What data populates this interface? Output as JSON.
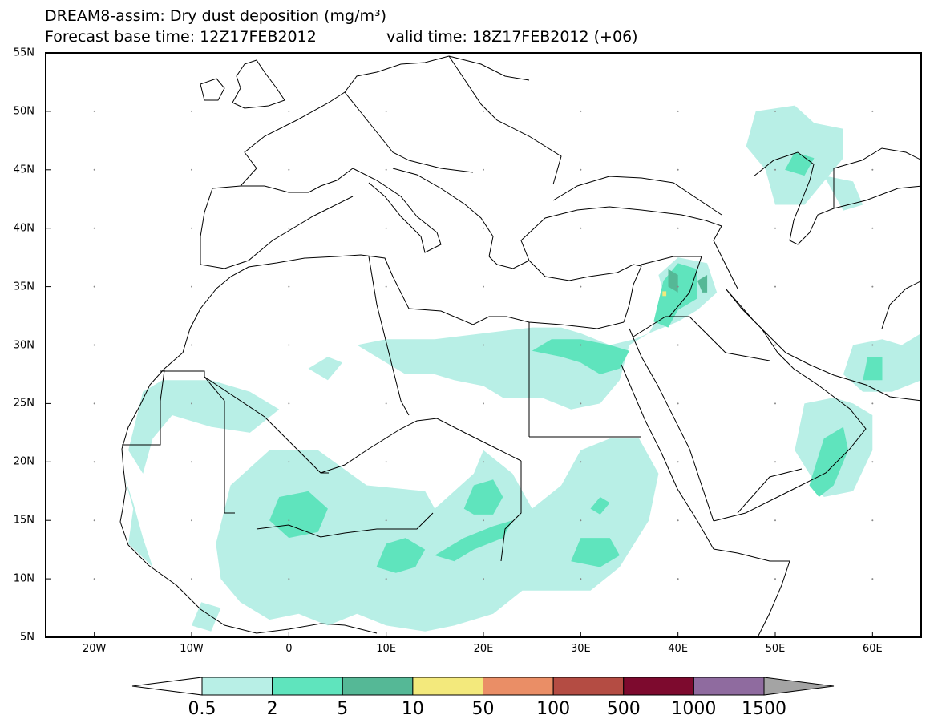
{
  "title": {
    "line1": "DREAM8-assim: Dry dust deposition (mg/m³)",
    "line2_left": "Forecast base time: 12Z17FEB2012",
    "line2_right": "valid time: 18Z17FEB2012 (+06)"
  },
  "map": {
    "lon_range": [
      -25,
      65
    ],
    "lat_range": [
      5,
      55
    ],
    "lat_ticks": [
      {
        "value": 55,
        "label": "55N"
      },
      {
        "value": 50,
        "label": "50N"
      },
      {
        "value": 45,
        "label": "45N"
      },
      {
        "value": 40,
        "label": "40N"
      },
      {
        "value": 35,
        "label": "35N"
      },
      {
        "value": 30,
        "label": "30N"
      },
      {
        "value": 25,
        "label": "25N"
      },
      {
        "value": 20,
        "label": "20N"
      },
      {
        "value": 15,
        "label": "15N"
      },
      {
        "value": 10,
        "label": "10N"
      },
      {
        "value": 5,
        "label": "5N"
      }
    ],
    "lon_ticks": [
      {
        "value": -20,
        "label": "20W"
      },
      {
        "value": -10,
        "label": "10W"
      },
      {
        "value": 0,
        "label": "0"
      },
      {
        "value": 10,
        "label": "10E"
      },
      {
        "value": 20,
        "label": "20E"
      },
      {
        "value": 30,
        "label": "30E"
      },
      {
        "value": 40,
        "label": "40E"
      },
      {
        "value": 50,
        "label": "50E"
      },
      {
        "value": 60,
        "label": "60E"
      }
    ],
    "grid": "dotted"
  },
  "colorbar": {
    "labels": [
      "0.5",
      "2",
      "5",
      "10",
      "50",
      "100",
      "500",
      "1000",
      "1500"
    ],
    "colors": [
      "#ffffff",
      "#b8efe6",
      "#5fe4bd",
      "#55b896",
      "#f3e97c",
      "#ea8e66",
      "#b44c43",
      "#7d0a2e",
      "#8f6b9f",
      "#a4a4a4"
    ]
  },
  "chart_data": {
    "type": "heatmap",
    "title": "DREAM8-assim: Dry dust deposition (mg/m³)",
    "subtitle": "Forecast base time: 12Z17FEB2012     valid time: 18Z17FEB2012 (+06)",
    "xlim": [
      -25,
      65
    ],
    "ylim": [
      5,
      55
    ],
    "levels": [
      0.5,
      2,
      5,
      10,
      50,
      100,
      500,
      1000,
      1500
    ],
    "regions": [
      {
        "level": 0.5,
        "poly": [
          [
            -16.5,
            21
          ],
          [
            -15,
            26
          ],
          [
            -13,
            27
          ],
          [
            -8,
            27
          ],
          [
            -4,
            26
          ],
          [
            -1,
            24.5
          ],
          [
            -4,
            22.5
          ],
          [
            -8,
            23
          ],
          [
            -12,
            24
          ],
          [
            -14,
            22
          ],
          [
            -15,
            19
          ]
        ]
      },
      {
        "level": 0.5,
        "poly": [
          [
            -17,
            19
          ],
          [
            -16,
            16
          ],
          [
            -16.5,
            13
          ],
          [
            -14,
            11
          ],
          [
            -15,
            13.5
          ],
          [
            -16,
            16.5
          ]
        ]
      },
      {
        "level": 0.5,
        "poly": [
          [
            -7.5,
            13
          ],
          [
            -6,
            18
          ],
          [
            -2,
            21
          ],
          [
            3,
            21
          ],
          [
            8,
            18
          ],
          [
            14,
            17.5
          ],
          [
            15,
            16
          ],
          [
            19,
            19
          ],
          [
            20,
            21
          ],
          [
            23,
            19
          ],
          [
            25,
            16
          ],
          [
            28,
            18
          ],
          [
            30,
            21
          ],
          [
            33,
            22
          ],
          [
            36,
            22
          ],
          [
            38,
            19
          ],
          [
            37,
            15
          ],
          [
            34,
            11
          ],
          [
            31,
            9
          ],
          [
            27,
            9
          ],
          [
            24,
            9
          ],
          [
            21,
            7
          ],
          [
            17,
            6
          ],
          [
            14,
            5.5
          ],
          [
            10,
            6
          ],
          [
            7,
            7
          ],
          [
            4,
            6
          ],
          [
            1,
            7
          ],
          [
            -2,
            6.5
          ],
          [
            -5,
            8
          ],
          [
            -7,
            10
          ]
        ]
      },
      {
        "level": 0.5,
        "poly": [
          [
            -10,
            6
          ],
          [
            -9,
            8
          ],
          [
            -7,
            7.5
          ],
          [
            -8,
            5.5
          ]
        ]
      },
      {
        "level": 0.5,
        "poly": [
          [
            7,
            30
          ],
          [
            9,
            29
          ],
          [
            12,
            27.5
          ],
          [
            15,
            27.5
          ],
          [
            17,
            27
          ],
          [
            20,
            26.5
          ],
          [
            22,
            25.5
          ],
          [
            26,
            25.5
          ],
          [
            29,
            24.5
          ],
          [
            32,
            25
          ],
          [
            34,
            27
          ],
          [
            35,
            30
          ],
          [
            37,
            31
          ],
          [
            38,
            32.5
          ],
          [
            39,
            33
          ],
          [
            38,
            36
          ],
          [
            40,
            37.5
          ],
          [
            43,
            37
          ],
          [
            44,
            34.5
          ],
          [
            42,
            33
          ],
          [
            40,
            32
          ],
          [
            37,
            31
          ],
          [
            35.5,
            30.5
          ],
          [
            33,
            30
          ],
          [
            30,
            31
          ],
          [
            28,
            31.5
          ],
          [
            25,
            31.5
          ],
          [
            20,
            31
          ],
          [
            15,
            30.5
          ],
          [
            10,
            30.5
          ]
        ]
      },
      {
        "level": 0.5,
        "poly": [
          [
            2,
            28
          ],
          [
            4,
            27
          ],
          [
            5.5,
            28.5
          ],
          [
            4,
            29
          ]
        ]
      },
      {
        "level": 0.5,
        "poly": [
          [
            53,
            25
          ],
          [
            52,
            21
          ],
          [
            55,
            17
          ],
          [
            58,
            17.5
          ],
          [
            60,
            21
          ],
          [
            60,
            24
          ],
          [
            58,
            25
          ],
          [
            56,
            25.5
          ]
        ]
      },
      {
        "level": 0.5,
        "poly": [
          [
            57,
            27.5
          ],
          [
            58,
            30
          ],
          [
            61,
            30.5
          ],
          [
            63,
            30
          ],
          [
            64,
            30.5
          ],
          [
            65,
            31
          ],
          [
            65,
            27
          ],
          [
            62,
            26
          ],
          [
            59,
            26
          ]
        ]
      },
      {
        "level": 0.5,
        "poly": [
          [
            47,
            47
          ],
          [
            48,
            50
          ],
          [
            52,
            50.5
          ],
          [
            54,
            49
          ],
          [
            57,
            48.5
          ],
          [
            57,
            46
          ],
          [
            55,
            44
          ],
          [
            53,
            42
          ],
          [
            50,
            42
          ],
          [
            49,
            45
          ]
        ]
      },
      {
        "level": 0.5,
        "poly": [
          [
            55,
            44.5
          ],
          [
            58,
            44
          ],
          [
            59,
            42
          ],
          [
            57,
            41.5
          ]
        ]
      },
      {
        "level": 2,
        "poly": [
          [
            -2,
            15
          ],
          [
            -1,
            17
          ],
          [
            2,
            17.5
          ],
          [
            4,
            16
          ],
          [
            3,
            14
          ],
          [
            0,
            13.5
          ]
        ]
      },
      {
        "level": 2,
        "poly": [
          [
            9,
            11
          ],
          [
            10,
            13
          ],
          [
            12,
            13.5
          ],
          [
            14,
            12.5
          ],
          [
            13,
            11
          ],
          [
            11,
            10.5
          ]
        ]
      },
      {
        "level": 2,
        "poly": [
          [
            15,
            12
          ],
          [
            18,
            13.5
          ],
          [
            21,
            14.5
          ],
          [
            23,
            15
          ],
          [
            22,
            13.5
          ],
          [
            19,
            12.5
          ],
          [
            17,
            11.5
          ]
        ]
      },
      {
        "level": 2,
        "poly": [
          [
            18,
            16
          ],
          [
            19,
            18
          ],
          [
            21,
            18.5
          ],
          [
            22,
            17
          ],
          [
            21,
            15.5
          ],
          [
            19,
            15.5
          ]
        ]
      },
      {
        "level": 2,
        "poly": [
          [
            29,
            11.5
          ],
          [
            30,
            13.5
          ],
          [
            33,
            13.5
          ],
          [
            34,
            12
          ],
          [
            32,
            11
          ]
        ]
      },
      {
        "level": 2,
        "poly": [
          [
            31,
            16
          ],
          [
            32,
            17
          ],
          [
            33,
            16.5
          ],
          [
            32,
            15.5
          ]
        ]
      },
      {
        "level": 2,
        "poly": [
          [
            25,
            29.5
          ],
          [
            27,
            30.5
          ],
          [
            30,
            30.5
          ],
          [
            33,
            30
          ],
          [
            35,
            29.5
          ],
          [
            34,
            28
          ],
          [
            32,
            27.5
          ],
          [
            30,
            28.5
          ],
          [
            28,
            29
          ]
        ]
      },
      {
        "level": 2,
        "poly": [
          [
            37.5,
            32
          ],
          [
            38.5,
            35.5
          ],
          [
            40,
            37
          ],
          [
            42,
            36.5
          ],
          [
            42,
            34
          ],
          [
            40,
            33
          ],
          [
            39,
            31.5
          ]
        ]
      },
      {
        "level": 2,
        "poly": [
          [
            53.5,
            18
          ],
          [
            55,
            22
          ],
          [
            57,
            23
          ],
          [
            57.5,
            21
          ],
          [
            56,
            18
          ],
          [
            54.5,
            17
          ]
        ]
      },
      {
        "level": 2,
        "poly": [
          [
            59,
            27
          ],
          [
            59.5,
            29
          ],
          [
            61,
            29
          ],
          [
            61,
            27
          ]
        ]
      },
      {
        "level": 2,
        "poly": [
          [
            51,
            45
          ],
          [
            52,
            46.5
          ],
          [
            54,
            46
          ],
          [
            53,
            44.5
          ]
        ]
      },
      {
        "level": 5,
        "poly": [
          [
            39,
            35
          ],
          [
            39,
            36.5
          ],
          [
            40,
            36
          ],
          [
            40,
            34.5
          ]
        ]
      },
      {
        "level": 5,
        "poly": [
          [
            42,
            35.5
          ],
          [
            43,
            36
          ],
          [
            43,
            34.5
          ],
          [
            42.5,
            34.5
          ]
        ]
      },
      {
        "level": 10,
        "poly": [
          [
            38.4,
            34.2
          ],
          [
            38.4,
            34.6
          ],
          [
            38.8,
            34.6
          ],
          [
            38.8,
            34.2
          ]
        ]
      }
    ]
  }
}
